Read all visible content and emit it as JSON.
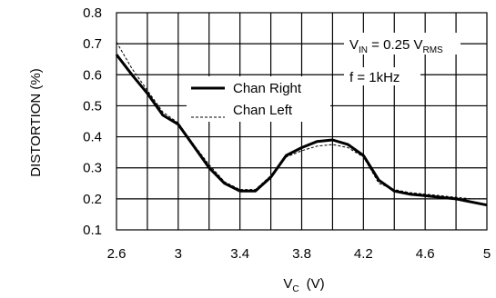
{
  "chart_data": {
    "type": "line",
    "xlabel_main": "V",
    "xlabel_sub": "C",
    "xlabel_unit": "(V)",
    "ylabel": "DISTORTION (%)",
    "xlim": [
      2.6,
      5.0
    ],
    "ylim": [
      0.1,
      0.8
    ],
    "x_ticks": [
      "2.6",
      "3",
      "3.4",
      "3.8",
      "4.2",
      "4.6",
      "5"
    ],
    "x_tick_values": [
      2.6,
      3.0,
      3.4,
      3.8,
      4.2,
      4.6,
      5.0
    ],
    "y_ticks": [
      "0.1",
      "0.2",
      "0.3",
      "0.4",
      "0.5",
      "0.6",
      "0.7",
      "0.8"
    ],
    "y_tick_values": [
      0.1,
      0.2,
      0.3,
      0.4,
      0.5,
      0.6,
      0.7,
      0.8
    ],
    "grid": true,
    "x_grid_step": 0.2,
    "y_grid_step": 0.1,
    "legend_position": "center-left",
    "annotations": {
      "vin_main": "V",
      "vin_sub": "IN",
      "vin_mid": " = 0.25 V",
      "vin_unit_sub": "RMS",
      "freq": "f = 1kHz"
    },
    "series": [
      {
        "name": "Chan Right",
        "style": "solid",
        "color": "#000000",
        "x": [
          2.6,
          2.7,
          2.8,
          2.9,
          3.0,
          3.1,
          3.2,
          3.3,
          3.4,
          3.5,
          3.6,
          3.7,
          3.8,
          3.9,
          4.0,
          4.1,
          4.2,
          4.3,
          4.4,
          4.5,
          4.6,
          4.7,
          4.8,
          4.9,
          5.0
        ],
        "y": [
          0.665,
          0.6,
          0.54,
          0.47,
          0.44,
          0.37,
          0.3,
          0.25,
          0.225,
          0.225,
          0.27,
          0.34,
          0.365,
          0.385,
          0.39,
          0.375,
          0.34,
          0.26,
          0.225,
          0.215,
          0.21,
          0.205,
          0.2,
          0.19,
          0.18
        ]
      },
      {
        "name": "Chan Left",
        "style": "dashed",
        "color": "#000000",
        "x": [
          2.6,
          2.7,
          2.8,
          2.9,
          3.0,
          3.1,
          3.2,
          3.3,
          3.4,
          3.5,
          3.6,
          3.7,
          3.8,
          3.9,
          4.0,
          4.1,
          4.2,
          4.3,
          4.4,
          4.5,
          4.6,
          4.7,
          4.8,
          4.9,
          5.0
        ],
        "y": [
          0.705,
          0.62,
          0.55,
          0.48,
          0.445,
          0.375,
          0.31,
          0.255,
          0.23,
          0.23,
          0.275,
          0.335,
          0.355,
          0.37,
          0.375,
          0.365,
          0.335,
          0.25,
          0.23,
          0.22,
          0.215,
          0.21,
          0.205,
          0.2,
          0.2
        ]
      }
    ]
  }
}
